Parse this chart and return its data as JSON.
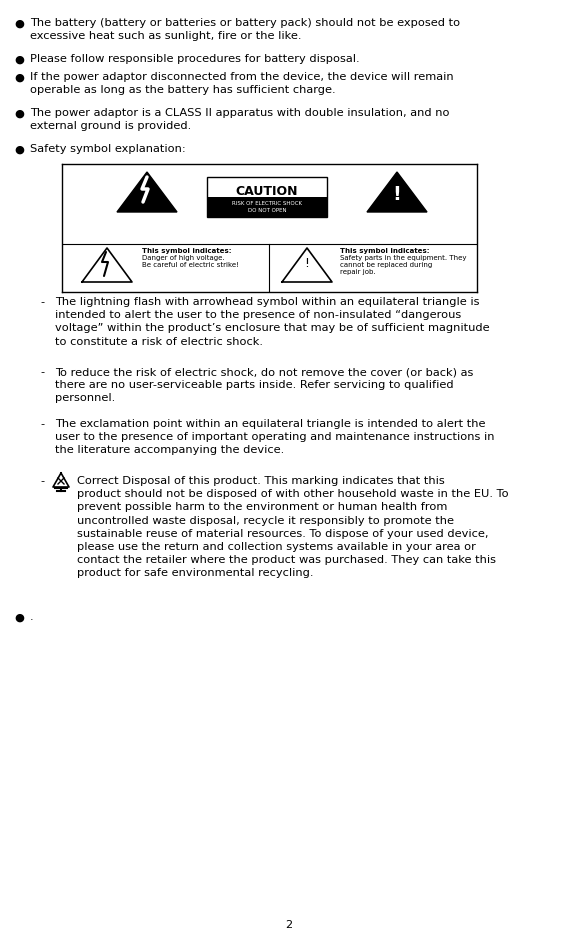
{
  "page_number": "2",
  "background_color": "#ffffff",
  "text_color": "#000000",
  "font_size": 8.5,
  "bullet_items": [
    "The battery (battery or batteries or battery pack) should not be exposed to\nexcessive heat such as sunlight, fire or the like.",
    "Please follow responsible procedures for battery disposal.",
    "If the power adaptor disconnected from the device, the device will remain\noperable as long as the battery has sufficient charge.",
    "The power adaptor is a CLASS II apparatus with double insulation, and no\nexternal ground is provided.",
    "Safety symbol explanation:"
  ],
  "dash_items": [
    "The lightning flash with arrowhead symbol within an equilateral triangle is\nintended to alert the user to the presence of non-insulated “dangerous\nvoltage” within the product’s enclosure that may be of sufficient magnitude\nto constitute a risk of electric shock.",
    "To reduce the risk of electric shock, do not remove the cover (or back) as\nthere are no user-serviceable parts inside. Refer servicing to qualified\npersonnel.",
    "The exclamation point within an equilateral triangle is intended to alert the\nuser to the presence of important operating and maintenance instructions in\nthe literature accompanying the device.",
    "Correct Disposal of this product. This marking indicates that this\nproduct should not be disposed of with other household waste in the EU. To\nprevent possible harm to the environment or human health from\nuncontrolled waste disposal, recycle it responsibly to promote the\nsustainable reuse of material resources. To dispose of your used device,\nplease use the return and collection systems available in your area or\ncontact the retailer where the product was purchased. They can take this\nproduct for safe environmental recycling."
  ],
  "last_bullet": ".",
  "figsize": [
    5.77,
    9.41
  ],
  "dpi": 100
}
